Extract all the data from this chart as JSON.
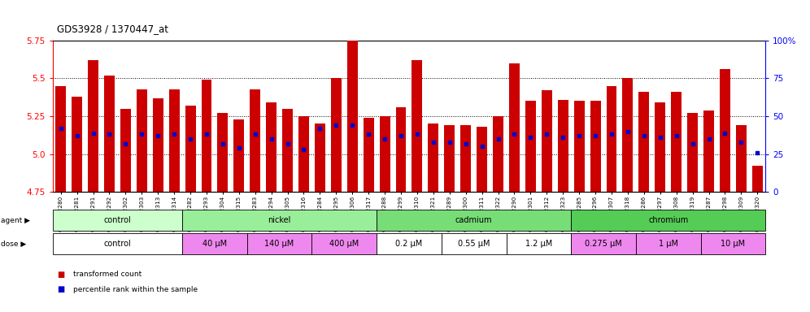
{
  "title": "GDS3928 / 1370447_at",
  "samples": [
    "GSM782280",
    "GSM782281",
    "GSM782291",
    "GSM782292",
    "GSM782302",
    "GSM782303",
    "GSM782313",
    "GSM782314",
    "GSM782282",
    "GSM782293",
    "GSM782304",
    "GSM782315",
    "GSM782283",
    "GSM782294",
    "GSM782305",
    "GSM782316",
    "GSM782284",
    "GSM782295",
    "GSM782306",
    "GSM782317",
    "GSM782288",
    "GSM782299",
    "GSM782310",
    "GSM782321",
    "GSM782289",
    "GSM782300",
    "GSM782311",
    "GSM782322",
    "GSM782290",
    "GSM782301",
    "GSM782312",
    "GSM782323",
    "GSM782285",
    "GSM782296",
    "GSM782307",
    "GSM782318",
    "GSM782286",
    "GSM782297",
    "GSM782308",
    "GSM782319",
    "GSM782287",
    "GSM782298",
    "GSM782309",
    "GSM782320"
  ],
  "transformed_count": [
    5.45,
    5.38,
    5.62,
    5.52,
    5.3,
    5.43,
    5.37,
    5.43,
    5.32,
    5.49,
    5.27,
    5.23,
    5.43,
    5.34,
    5.3,
    5.25,
    5.2,
    5.5,
    5.75,
    5.24,
    5.25,
    5.31,
    5.62,
    5.2,
    5.19,
    5.19,
    5.18,
    5.25,
    5.6,
    5.35,
    5.42,
    5.36,
    5.35,
    5.35,
    5.45,
    5.5,
    5.41,
    5.34,
    5.41,
    5.27,
    5.29,
    5.56,
    5.19,
    4.92
  ],
  "percentile_rank": [
    42,
    37,
    39,
    38,
    32,
    38,
    37,
    38,
    35,
    38,
    32,
    29,
    38,
    35,
    32,
    28,
    42,
    44,
    44,
    38,
    35,
    37,
    38,
    33,
    33,
    32,
    30,
    35,
    38,
    36,
    38,
    36,
    37,
    37,
    38,
    40,
    37,
    36,
    37,
    32,
    35,
    39,
    33,
    26
  ],
  "ylim_left": [
    4.75,
    5.75
  ],
  "ylim_right": [
    0,
    100
  ],
  "yticks_left": [
    4.75,
    5.0,
    5.25,
    5.5,
    5.75
  ],
  "yticks_right": [
    0,
    25,
    50,
    75,
    100
  ],
  "bar_color": "#CC0000",
  "percentile_color": "#0000CC",
  "agent_groups": [
    {
      "label": "control",
      "start": 0,
      "end": 7,
      "color": "#CCFFCC"
    },
    {
      "label": "nickel",
      "start": 8,
      "end": 19,
      "color": "#99EE99"
    },
    {
      "label": "cadmium",
      "start": 20,
      "end": 31,
      "color": "#77DD77"
    },
    {
      "label": "chromium",
      "start": 32,
      "end": 43,
      "color": "#55CC55"
    }
  ],
  "dose_groups": [
    {
      "label": "control",
      "start": 0,
      "end": 7,
      "color": "#FFFFFF"
    },
    {
      "label": "40 μM",
      "start": 8,
      "end": 11,
      "color": "#EE88EE"
    },
    {
      "label": "140 μM",
      "start": 12,
      "end": 15,
      "color": "#EE88EE"
    },
    {
      "label": "400 μM",
      "start": 16,
      "end": 19,
      "color": "#EE88EE"
    },
    {
      "label": "0.2 μM",
      "start": 20,
      "end": 23,
      "color": "#FFFFFF"
    },
    {
      "label": "0.55 μM",
      "start": 24,
      "end": 27,
      "color": "#FFFFFF"
    },
    {
      "label": "1.2 μM",
      "start": 28,
      "end": 31,
      "color": "#FFFFFF"
    },
    {
      "label": "0.275 μM",
      "start": 32,
      "end": 35,
      "color": "#EE88EE"
    },
    {
      "label": "1 μM",
      "start": 36,
      "end": 39,
      "color": "#EE88EE"
    },
    {
      "label": "10 μM",
      "start": 40,
      "end": 43,
      "color": "#EE88EE"
    }
  ],
  "legend_items": [
    {
      "label": "transformed count",
      "color": "#CC0000"
    },
    {
      "label": "percentile rank within the sample",
      "color": "#0000CC"
    }
  ]
}
